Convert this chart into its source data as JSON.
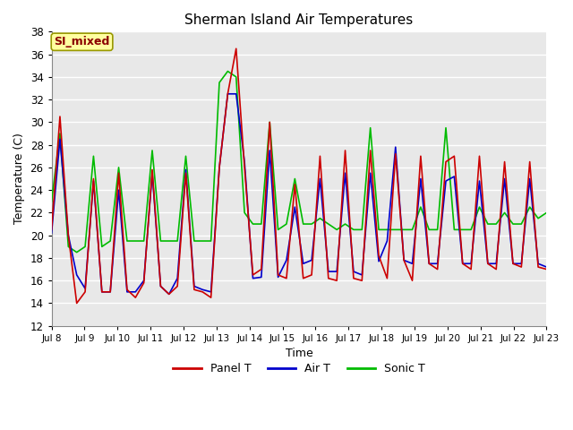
{
  "title": "Sherman Island Air Temperatures",
  "xlabel": "Time",
  "ylabel": "Temperature (C)",
  "annotation": "SI_mixed",
  "annotation_color": "#8B0000",
  "annotation_bg": "#FFFFA0",
  "ylim": [
    12,
    38
  ],
  "yticks": [
    12,
    14,
    16,
    18,
    20,
    22,
    24,
    26,
    28,
    30,
    32,
    34,
    36,
    38
  ],
  "line_colors": {
    "panel": "#CC0000",
    "air": "#0000CC",
    "sonic": "#00BB00"
  },
  "line_width": 1.2,
  "bg_color": "#E8E8E8",
  "legend_labels": [
    "Panel T",
    "Air T",
    "Sonic T"
  ],
  "xtick_labels": [
    "Jul 8",
    "Jul 9",
    "Jul 10",
    "Jul 11",
    "Jul 12",
    "Jul 13",
    "Jul 14",
    "Jul 15",
    "Jul 16",
    "Jul 17",
    "Jul 18",
    "Jul 19",
    "Jul 20",
    "Jul 21",
    "Jul 22",
    "Jul 23"
  ],
  "panel_t": [
    20.5,
    30.5,
    20.0,
    14.0,
    15.0,
    25.0,
    15.0,
    15.0,
    25.5,
    15.2,
    14.5,
    15.8,
    25.8,
    15.5,
    14.8,
    15.5,
    25.5,
    15.2,
    15.0,
    14.5,
    26.0,
    32.5,
    36.5,
    26.0,
    16.5,
    17.0,
    30.0,
    16.5,
    16.2,
    24.5,
    16.2,
    16.5,
    27.0,
    16.2,
    16.0,
    27.5,
    16.2,
    16.0,
    27.5,
    18.2,
    16.2,
    27.2,
    17.8,
    16.0,
    27.0,
    17.5,
    17.0,
    26.5,
    27.0,
    17.5,
    17.0,
    27.0,
    17.5,
    17.0,
    26.5,
    17.5,
    17.2,
    26.5,
    17.2,
    17.0
  ],
  "air_t": [
    20.2,
    28.5,
    20.0,
    16.5,
    15.3,
    24.8,
    15.0,
    15.0,
    24.0,
    15.0,
    15.0,
    16.0,
    25.5,
    15.5,
    14.8,
    16.2,
    25.8,
    15.5,
    15.2,
    15.0,
    26.0,
    32.5,
    32.5,
    26.5,
    16.2,
    16.3,
    27.5,
    16.3,
    17.8,
    22.5,
    17.5,
    17.8,
    25.0,
    16.8,
    16.8,
    25.5,
    16.8,
    16.5,
    25.5,
    17.7,
    19.5,
    27.8,
    17.8,
    17.5,
    25.0,
    17.5,
    17.5,
    24.8,
    25.2,
    17.5,
    17.5,
    24.8,
    17.5,
    17.5,
    25.0,
    17.5,
    17.5,
    25.0,
    17.5,
    17.2
  ],
  "sonic_t": [
    23.0,
    29.0,
    19.0,
    18.5,
    19.0,
    27.0,
    19.0,
    19.5,
    26.0,
    19.5,
    19.5,
    19.5,
    27.5,
    19.5,
    19.5,
    19.5,
    27.0,
    19.5,
    19.5,
    19.5,
    33.5,
    34.5,
    34.0,
    22.0,
    21.0,
    21.0,
    30.0,
    20.5,
    21.0,
    25.0,
    21.0,
    21.0,
    21.5,
    21.0,
    20.5,
    21.0,
    20.5,
    20.5,
    29.5,
    20.5,
    20.5,
    20.5,
    20.5,
    20.5,
    22.5,
    20.5,
    20.5,
    29.5,
    20.5,
    20.5,
    20.5,
    22.5,
    21.0,
    21.0,
    22.0,
    21.0,
    21.0,
    22.5,
    21.5,
    22.0
  ]
}
